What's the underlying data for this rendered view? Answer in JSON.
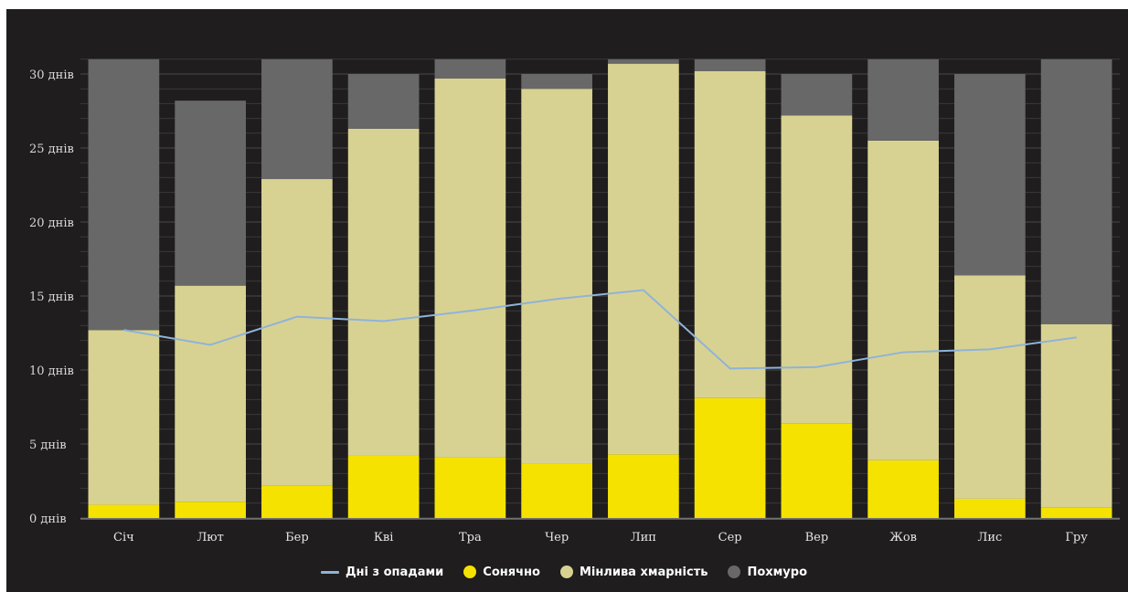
{
  "chart_data": {
    "type": "bar",
    "stacked": true,
    "categories": [
      "Січ",
      "Лют",
      "Бер",
      "Кві",
      "Тра",
      "Чер",
      "Лип",
      "Сер",
      "Вер",
      "Жов",
      "Лис",
      "Гру"
    ],
    "series": [
      {
        "name": "Сонячно",
        "color": "#f5e200",
        "values": [
          0.9,
          1.1,
          2.2,
          4.2,
          4.1,
          3.7,
          4.3,
          8.1,
          6.4,
          3.9,
          1.3,
          0.7
        ]
      },
      {
        "name": "Мінлива хмарність",
        "color": "#d8d292",
        "values": [
          11.8,
          14.6,
          20.7,
          22.1,
          25.6,
          25.3,
          26.4,
          22.1,
          20.8,
          21.6,
          15.1,
          12.4
        ]
      },
      {
        "name": "Похмуро",
        "color": "#686868",
        "values": [
          18.3,
          12.5,
          8.1,
          3.7,
          1.3,
          1.0,
          0.3,
          0.8,
          2.8,
          5.5,
          13.6,
          17.9
        ]
      }
    ],
    "line_series": {
      "name": "Дні з опадами",
      "color": "#8fb3d9",
      "values": [
        12.7,
        11.7,
        13.6,
        13.3,
        14.0,
        14.8,
        15.4,
        10.1,
        10.2,
        11.2,
        11.4,
        12.2
      ]
    },
    "ylim": [
      0,
      31
    ],
    "yticks": [
      {
        "value": 0,
        "label": "0 днів"
      },
      {
        "value": 5,
        "label": "5 днів"
      },
      {
        "value": 10,
        "label": "10 днів"
      },
      {
        "value": 15,
        "label": "15 днів"
      },
      {
        "value": 20,
        "label": "20 днів"
      },
      {
        "value": 25,
        "label": "25 днів"
      },
      {
        "value": 30,
        "label": "30 днів"
      }
    ],
    "grid": true,
    "legend_position": "bottom-center",
    "legend": [
      "Дні з опадами",
      "Сонячно",
      "Мінлива хмарність",
      "Похмуро"
    ]
  }
}
